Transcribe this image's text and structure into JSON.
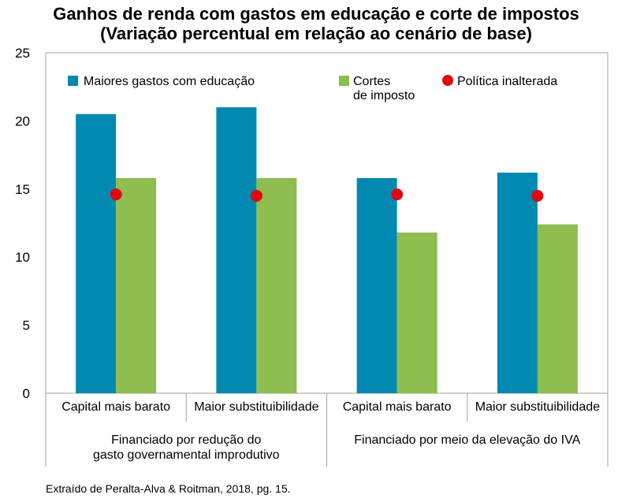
{
  "title_line1": "Ganhos de renda com gastos em educação e corte de impostos",
  "title_line2": "(Variação percentual em relação ao cenário de base)",
  "source": "Extraído de Peralta-Alva & Roitman, 2018, pg. 15.",
  "colors": {
    "education": "#0089B0",
    "tax": "#8DBE4F",
    "unchanged": "#E30613",
    "axis": "#a0a0a0"
  },
  "chart_data": {
    "type": "bar",
    "title": "Ganhos de renda com gastos em educação e corte de impostos (Variação percentual em relação ao cenário de base)",
    "categories": [
      "Capital mais barato",
      "Maior substituibilidade",
      "Capital mais barato",
      "Maior substituibilidade"
    ],
    "groups": [
      {
        "label_line1": "Financiado por redução do",
        "label_line2": "gasto governamental improdutivo"
      },
      {
        "label_line1": "Financiado por meio da elevação do IVA",
        "label_line2": ""
      }
    ],
    "ylim": [
      0,
      25
    ],
    "yticks": [
      0,
      5,
      10,
      15,
      20,
      25
    ],
    "grid": false,
    "legend_position": "top",
    "series": [
      {
        "name": "Maiores gastos com educação",
        "values": [
          20.5,
          21.0,
          15.8,
          16.2
        ],
        "color": "#0089B0",
        "kind": "bar"
      },
      {
        "name": "Cortes de imposto",
        "name_line1": "Cortes",
        "name_line2": "de imposto",
        "values": [
          15.8,
          15.8,
          11.8,
          12.4
        ],
        "color": "#8DBE4F",
        "kind": "bar"
      },
      {
        "name": "Política inalterada",
        "values": [
          14.6,
          14.5,
          14.6,
          14.5
        ],
        "color": "#E30613",
        "kind": "marker"
      }
    ]
  }
}
